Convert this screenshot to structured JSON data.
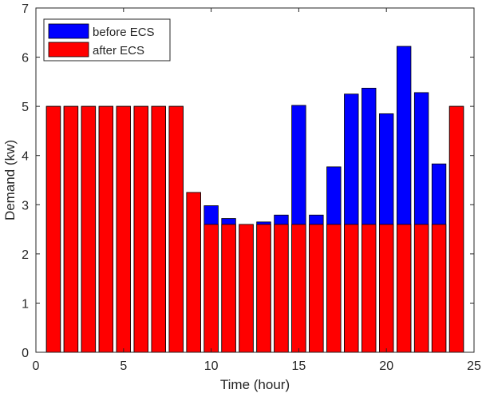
{
  "chart_data": {
    "type": "bar",
    "title": "",
    "xlabel": "Time (hour)",
    "ylabel": "Demand (kw)",
    "xlim": [
      0,
      25
    ],
    "ylim": [
      0,
      7
    ],
    "x_ticks": [
      "0",
      "5",
      "10",
      "15",
      "20",
      "25"
    ],
    "y_ticks": [
      "0",
      "1",
      "2",
      "3",
      "4",
      "5",
      "6",
      "7"
    ],
    "grid": false,
    "legend_position": "top-left",
    "categories": [
      1,
      2,
      3,
      4,
      5,
      6,
      7,
      8,
      9,
      10,
      11,
      12,
      13,
      14,
      15,
      16,
      17,
      18,
      19,
      20,
      21,
      22,
      23,
      24
    ],
    "series": [
      {
        "name": "before ECS",
        "color": "#0000ff",
        "values": [
          5,
          5,
          5,
          5,
          5,
          5,
          5,
          5,
          3.25,
          2.98,
          2.72,
          2.6,
          2.65,
          2.79,
          5.02,
          2.79,
          3.77,
          5.25,
          5.37,
          4.85,
          6.22,
          5.28,
          3.83,
          5
        ]
      },
      {
        "name": "after ECS",
        "color": "#ff0000",
        "values": [
          5,
          5,
          5,
          5,
          5,
          5,
          5,
          5,
          3.25,
          2.6,
          2.6,
          2.6,
          2.6,
          2.6,
          2.6,
          2.6,
          2.6,
          2.6,
          2.6,
          2.6,
          2.6,
          2.6,
          2.6,
          5
        ]
      }
    ]
  }
}
